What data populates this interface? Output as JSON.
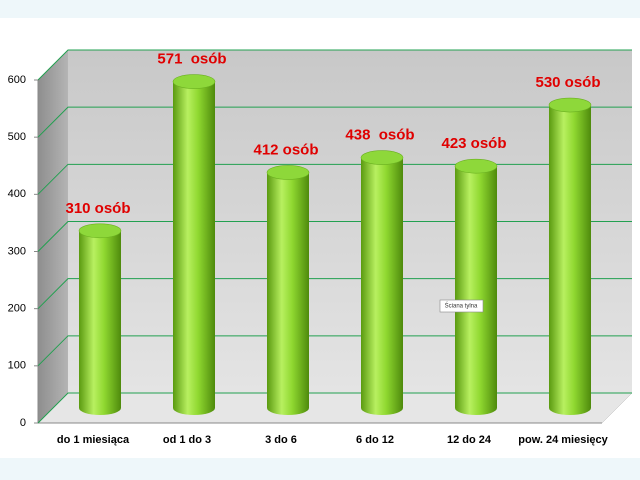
{
  "chart_data": {
    "type": "bar",
    "categories": [
      "do 1 miesiąca",
      "od 1 do 3",
      "3 do 6",
      "6 do 12",
      "12 do 24",
      "pow. 24 miesięcy"
    ],
    "values": [
      310,
      571,
      412,
      438,
      423,
      530
    ],
    "value_labels": [
      "310 osób",
      "571  osób",
      "412 osób",
      "438  osób",
      "423 osób",
      "530 osób"
    ],
    "color": "#7ccc20",
    "ylim": [
      0,
      600
    ],
    "yticks": [
      0,
      100,
      200,
      300,
      400,
      500,
      600
    ],
    "grid": true,
    "tooltip": "Ściana tylna"
  }
}
